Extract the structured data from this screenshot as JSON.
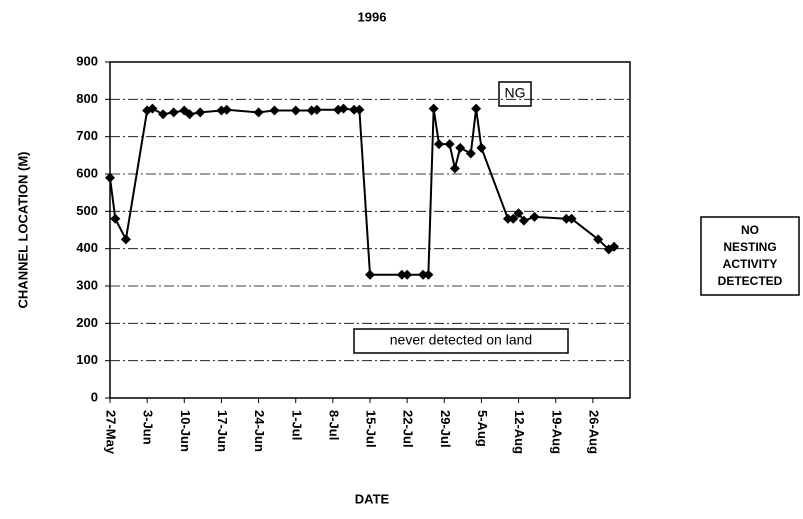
{
  "chart_data": {
    "type": "line",
    "title": "1996",
    "xlabel": "DATE",
    "ylabel": "CHANNEL LOCATION (M)",
    "annotations": [
      "NG",
      "never detected on land"
    ],
    "side_note": [
      "NO",
      "NESTING",
      "ACTIVITY",
      "DETECTED"
    ],
    "x": [
      "27-May",
      "28-May",
      "30-May",
      "3-Jun",
      "4-Jun",
      "6-Jun",
      "8-Jun",
      "10-Jun",
      "11-Jun",
      "13-Jun",
      "17-Jun",
      "18-Jun",
      "24-Jun",
      "27-Jun",
      "1-Jul",
      "4-Jul",
      "5-Jul",
      "9-Jul",
      "10-Jul",
      "12-Jul",
      "13-Jul",
      "15-Jul",
      "21-Jul",
      "22-Jul",
      "25-Jul",
      "26-Jul",
      "27-Jul",
      "28-Jul",
      "30-Jul",
      "31-Jul",
      "1-Aug",
      "3-Aug",
      "4-Aug",
      "5-Aug",
      "10-Aug",
      "11-Aug",
      "12-Aug",
      "13-Aug",
      "15-Aug",
      "21-Aug",
      "22-Aug",
      "27-Aug",
      "29-Aug",
      "30-Aug"
    ],
    "series": [
      {
        "name": "channel location",
        "color": "#000000",
        "values": [
          590,
          480,
          425,
          770,
          775,
          760,
          765,
          770,
          760,
          765,
          770,
          772,
          765,
          770,
          770,
          770,
          772,
          772,
          775,
          772,
          772,
          330,
          330,
          330,
          330,
          330,
          775,
          680,
          680,
          615,
          670,
          655,
          775,
          670,
          480,
          480,
          495,
          475,
          485,
          480,
          480,
          425,
          398,
          405
        ]
      }
    ],
    "xlim": [
      "27-May",
      "2-Sep"
    ],
    "xticks": [
      "27-May",
      "3-Jun",
      "10-Jun",
      "17-Jun",
      "24-Jun",
      "1-Jul",
      "8-Jul",
      "15-Jul",
      "22-Jul",
      "29-Jul",
      "5-Aug",
      "12-Aug",
      "19-Aug",
      "26-Aug"
    ],
    "ylim": [
      0,
      900
    ],
    "yticks": [
      0,
      100,
      200,
      300,
      400,
      500,
      600,
      700,
      800,
      900
    ],
    "grid": true
  }
}
